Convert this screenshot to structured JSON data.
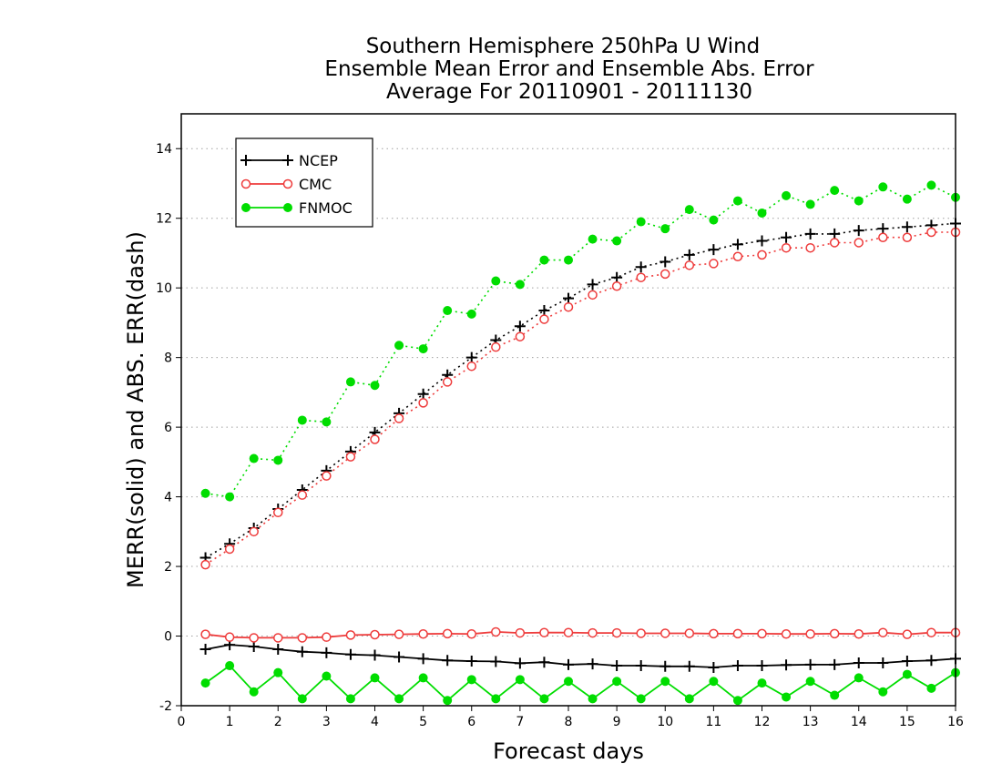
{
  "chart_data": {
    "type": "line",
    "title": [
      "Southern Hemisphere 250hPa U Wind",
      "Ensemble Mean Error and Ensemble Abs. Error",
      "Average For 20110901 - 20111130"
    ],
    "xlabel": "Forecast days",
    "ylabel": "MERR(solid) and ABS. ERR(dash)",
    "xlim": [
      0,
      16
    ],
    "ylim": [
      -2,
      15
    ],
    "x_ticks": [
      "0",
      "1",
      "2",
      "3",
      "4",
      "5",
      "6",
      "7",
      "8",
      "9",
      "10",
      "11",
      "12",
      "13",
      "14",
      "15",
      "16"
    ],
    "y_ticks": [
      "-2",
      "0",
      "2",
      "4",
      "6",
      "8",
      "10",
      "12",
      "14"
    ],
    "grid": "horizontal dotted",
    "legend_position": "top-left",
    "x": [
      0.5,
      1,
      1.5,
      2,
      2.5,
      3,
      3.5,
      4,
      4.5,
      5,
      5.5,
      6,
      6.5,
      7,
      7.5,
      8,
      8.5,
      9,
      9.5,
      10,
      10.5,
      11,
      11.5,
      12,
      12.5,
      13,
      13.5,
      14,
      14.5,
      15,
      15.5,
      16
    ],
    "series": [
      {
        "name": "NCEP",
        "color": "#000000",
        "marker": "plus",
        "merr": [
          -0.38,
          -0.25,
          -0.3,
          -0.38,
          -0.45,
          -0.48,
          -0.53,
          -0.55,
          -0.6,
          -0.65,
          -0.7,
          -0.72,
          -0.73,
          -0.78,
          -0.75,
          -0.82,
          -0.8,
          -0.85,
          -0.85,
          -0.87,
          -0.87,
          -0.9,
          -0.85,
          -0.85,
          -0.83,
          -0.82,
          -0.82,
          -0.77,
          -0.77,
          -0.72,
          -0.7,
          -0.65
        ],
        "abs_err": [
          2.25,
          2.65,
          3.1,
          3.65,
          4.2,
          4.75,
          5.3,
          5.85,
          6.4,
          6.95,
          7.5,
          8.0,
          8.5,
          8.9,
          9.35,
          9.7,
          10.1,
          10.3,
          10.6,
          10.75,
          10.95,
          11.1,
          11.25,
          11.35,
          11.45,
          11.55,
          11.55,
          11.65,
          11.7,
          11.75,
          11.8,
          11.85
        ]
      },
      {
        "name": "CMC",
        "color": "#ee3b3b",
        "marker": "open-circle",
        "merr": [
          0.05,
          -0.03,
          -0.05,
          -0.05,
          -0.05,
          -0.03,
          0.03,
          0.04,
          0.05,
          0.06,
          0.07,
          0.06,
          0.12,
          0.09,
          0.1,
          0.1,
          0.09,
          0.09,
          0.08,
          0.08,
          0.08,
          0.07,
          0.07,
          0.07,
          0.06,
          0.06,
          0.07,
          0.06,
          0.1,
          0.05,
          0.1,
          0.1
        ],
        "abs_err": [
          2.05,
          2.5,
          3.0,
          3.55,
          4.05,
          4.6,
          5.15,
          5.65,
          6.25,
          6.7,
          7.3,
          7.75,
          8.3,
          8.6,
          9.1,
          9.45,
          9.8,
          10.05,
          10.3,
          10.4,
          10.65,
          10.7,
          10.9,
          10.95,
          11.15,
          11.15,
          11.3,
          11.3,
          11.45,
          11.45,
          11.6,
          11.6
        ]
      },
      {
        "name": "FNMOC",
        "color": "#00dd00",
        "marker": "filled-circle",
        "merr": [
          -1.35,
          -0.85,
          -1.6,
          -1.05,
          -1.8,
          -1.15,
          -1.8,
          -1.2,
          -1.8,
          -1.2,
          -1.85,
          -1.25,
          -1.8,
          -1.25,
          -1.8,
          -1.3,
          -1.8,
          -1.3,
          -1.8,
          -1.3,
          -1.8,
          -1.3,
          -1.85,
          -1.35,
          -1.75,
          -1.3,
          -1.7,
          -1.2,
          -1.6,
          -1.1,
          -1.5,
          -1.05
        ],
        "abs_err": [
          4.1,
          4.0,
          5.1,
          5.05,
          6.2,
          6.15,
          7.3,
          7.2,
          8.35,
          8.25,
          9.35,
          9.25,
          10.2,
          10.1,
          10.8,
          10.8,
          11.4,
          11.35,
          11.9,
          11.7,
          12.25,
          11.95,
          12.5,
          12.15,
          12.65,
          12.4,
          12.8,
          12.5,
          12.9,
          12.55,
          12.95,
          12.6
        ]
      }
    ]
  }
}
